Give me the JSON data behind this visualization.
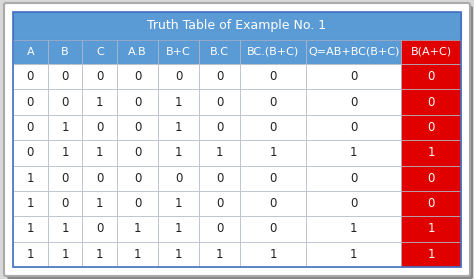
{
  "title": "Truth Table of Example No. 1",
  "columns": [
    "A",
    "B",
    "C",
    "A.B",
    "B+C",
    "B.C",
    "BC.(B+C)",
    "Q=AB+BC(B+C)",
    "B(A+C)"
  ],
  "rows": [
    [
      0,
      0,
      0,
      0,
      0,
      0,
      0,
      0,
      0
    ],
    [
      0,
      0,
      1,
      0,
      1,
      0,
      0,
      0,
      0
    ],
    [
      0,
      1,
      0,
      0,
      1,
      0,
      0,
      0,
      0
    ],
    [
      0,
      1,
      1,
      0,
      1,
      1,
      1,
      1,
      1
    ],
    [
      1,
      0,
      0,
      0,
      0,
      0,
      0,
      0,
      0
    ],
    [
      1,
      0,
      1,
      0,
      1,
      0,
      0,
      0,
      0
    ],
    [
      1,
      1,
      0,
      1,
      1,
      0,
      0,
      1,
      1
    ],
    [
      1,
      1,
      1,
      1,
      1,
      1,
      1,
      1,
      1
    ]
  ],
  "title_bg": "#5b9bd5",
  "header_bg": "#5b9bd5",
  "last_col_header_bg": "#e00000",
  "last_col_data_bg": "#e00000",
  "last_col_text": "#ffffff",
  "header_text": "#ffffff",
  "cell_bg": "#ffffff",
  "cell_text": "#222222",
  "border_color": "#b0b8c8",
  "outer_bg": "#d8d8d8",
  "outer_border": "#888888",
  "inner_border": "#4472c4",
  "title_fontsize": 9,
  "header_fontsize": 8,
  "cell_fontsize": 8.5,
  "col_weights": [
    0.55,
    0.55,
    0.55,
    0.65,
    0.65,
    0.65,
    1.05,
    1.5,
    0.95
  ]
}
